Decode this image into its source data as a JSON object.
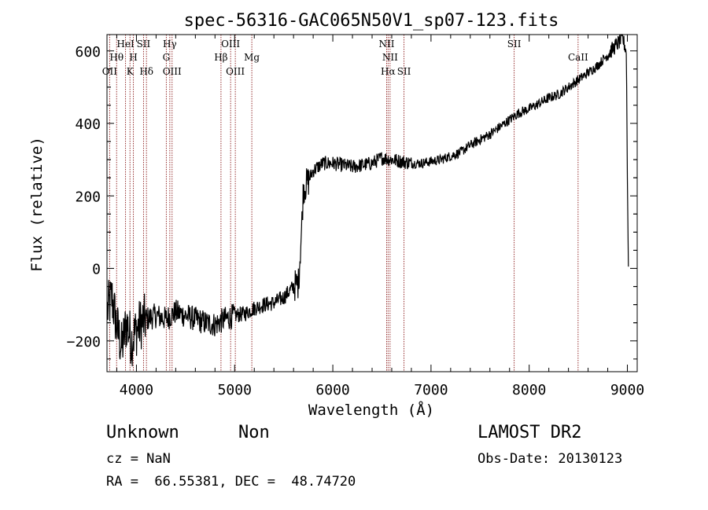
{
  "chart_data": {
    "type": "line",
    "title": "spec-56316-GAC065N50V1_sp07-123.fits",
    "xlabel": "Wavelength (Å)",
    "ylabel": "Flux (relative)",
    "xlim": [
      3700,
      9100
    ],
    "ylim": [
      -285,
      645
    ],
    "x_ticks": [
      4000,
      5000,
      6000,
      7000,
      8000,
      9000
    ],
    "x_tick_labels": [
      "4000",
      "5000",
      "6000",
      "7000",
      "8000",
      "9000"
    ],
    "y_ticks": [
      -200,
      0,
      200,
      400,
      600
    ],
    "y_tick_labels": [
      "−200",
      "0",
      "200",
      "400",
      "600"
    ],
    "series": [
      {
        "name": "flux",
        "color": "#000000",
        "points": [
          [
            3700,
            -120
          ],
          [
            3750,
            -80
          ],
          [
            3800,
            -160
          ],
          [
            3850,
            -220
          ],
          [
            3900,
            -150
          ],
          [
            3950,
            -200
          ],
          [
            4000,
            -170
          ],
          [
            4050,
            -150
          ],
          [
            4100,
            -140
          ],
          [
            4200,
            -130
          ],
          [
            4300,
            -140
          ],
          [
            4400,
            -120
          ],
          [
            4500,
            -130
          ],
          [
            4600,
            -140
          ],
          [
            4700,
            -150
          ],
          [
            4800,
            -155
          ],
          [
            4900,
            -140
          ],
          [
            5000,
            -130
          ],
          [
            5100,
            -125
          ],
          [
            5200,
            -110
          ],
          [
            5300,
            -100
          ],
          [
            5400,
            -95
          ],
          [
            5500,
            -80
          ],
          [
            5600,
            -50
          ],
          [
            5650,
            -40
          ],
          [
            5680,
            100
          ],
          [
            5700,
            220
          ],
          [
            5750,
            240
          ],
          [
            5800,
            270
          ],
          [
            5900,
            290
          ],
          [
            6000,
            290
          ],
          [
            6100,
            285
          ],
          [
            6200,
            280
          ],
          [
            6300,
            285
          ],
          [
            6400,
            290
          ],
          [
            6500,
            305
          ],
          [
            6600,
            300
          ],
          [
            6700,
            295
          ],
          [
            6800,
            290
          ],
          [
            6900,
            290
          ],
          [
            7000,
            295
          ],
          [
            7100,
            300
          ],
          [
            7200,
            310
          ],
          [
            7300,
            320
          ],
          [
            7400,
            340
          ],
          [
            7500,
            355
          ],
          [
            7600,
            370
          ],
          [
            7700,
            390
          ],
          [
            7800,
            410
          ],
          [
            7900,
            430
          ],
          [
            8000,
            440
          ],
          [
            8100,
            455
          ],
          [
            8200,
            470
          ],
          [
            8300,
            480
          ],
          [
            8400,
            500
          ],
          [
            8500,
            520
          ],
          [
            8600,
            540
          ],
          [
            8700,
            560
          ],
          [
            8800,
            590
          ],
          [
            8900,
            620
          ],
          [
            8950,
            635
          ],
          [
            8990,
            600
          ],
          [
            9000,
            250
          ],
          [
            9010,
            5
          ]
        ]
      }
    ],
    "lines": [
      {
        "label": "OII",
        "x": 3727,
        "row": 3
      },
      {
        "label": "Hθ",
        "x": 3798,
        "row": 2
      },
      {
        "label": "HeI",
        "x": 3889,
        "row": 1
      },
      {
        "label": "K",
        "x": 3934,
        "row": 3
      },
      {
        "label": "H",
        "x": 3969,
        "row": 2
      },
      {
        "label": "SII",
        "x": 4072,
        "row": 1
      },
      {
        "label": "Hδ",
        "x": 4102,
        "row": 3
      },
      {
        "label": "Hγ",
        "x": 4340,
        "row": 1
      },
      {
        "label": "G",
        "x": 4304,
        "row": 2
      },
      {
        "label": "OIII",
        "x": 4363,
        "row": 3
      },
      {
        "label": "Hβ",
        "x": 4861,
        "row": 2
      },
      {
        "label": "OIII",
        "x": 4959,
        "row": 1
      },
      {
        "label": "OIII",
        "x": 5007,
        "row": 3
      },
      {
        "label": "Mg",
        "x": 5175,
        "row": 2
      },
      {
        "label": "NII",
        "x": 6548,
        "row": 1
      },
      {
        "label": "NII",
        "x": 6583,
        "row": 2
      },
      {
        "label": "Hα",
        "x": 6563,
        "row": 3
      },
      {
        "label": "SII",
        "x": 6725,
        "row": 3
      },
      {
        "label": "SII",
        "x": 7847,
        "row": 1
      },
      {
        "label": "CaII",
        "x": 8498,
        "row": 2
      }
    ],
    "line_color": "#8b1a1a"
  },
  "info": {
    "classification": "Unknown",
    "subclass": "Non",
    "cz": "cz = NaN",
    "coords": "RA =  66.55381, DEC =  48.74720",
    "survey": "LAMOST DR2",
    "obs_date": "Obs-Date: 20130123"
  }
}
